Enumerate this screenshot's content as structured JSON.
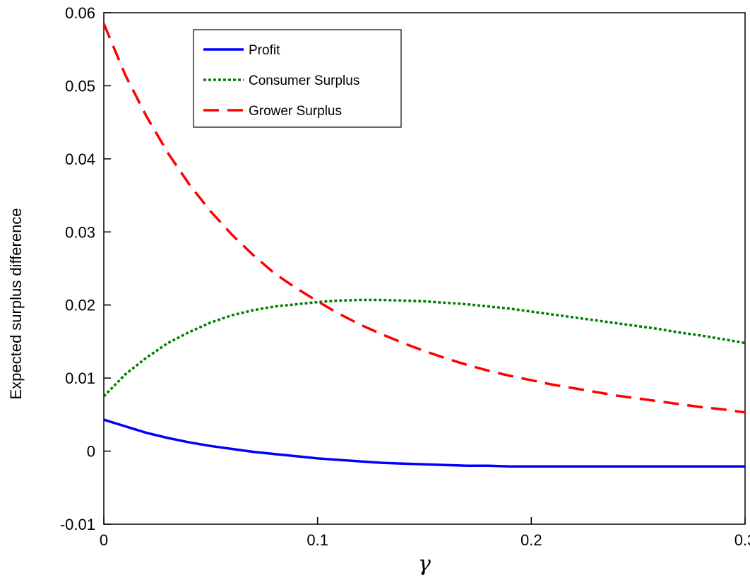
{
  "chart_data": {
    "type": "line",
    "title": "",
    "xlabel": "γ",
    "ylabel": "Expected surplus difference",
    "xlim": [
      0,
      0.3
    ],
    "ylim": [
      -0.01,
      0.06
    ],
    "xticks": [
      0,
      0.1,
      0.2,
      0.3
    ],
    "xtick_labels": [
      "0",
      "0.1",
      "0.2",
      "0.3"
    ],
    "yticks": [
      -0.01,
      0,
      0.01,
      0.02,
      0.03,
      0.04,
      0.05,
      0.06
    ],
    "ytick_labels": [
      "-0.01",
      "0",
      "0.01",
      "0.02",
      "0.03",
      "0.04",
      "0.05",
      "0.06"
    ],
    "grid": false,
    "legend_position": "top-left",
    "x": [
      0,
      0.01,
      0.02,
      0.03,
      0.04,
      0.05,
      0.06,
      0.07,
      0.08,
      0.09,
      0.1,
      0.11,
      0.12,
      0.13,
      0.14,
      0.15,
      0.16,
      0.17,
      0.18,
      0.19,
      0.2,
      0.21,
      0.22,
      0.23,
      0.24,
      0.25,
      0.26,
      0.27,
      0.28,
      0.29,
      0.3
    ],
    "series": [
      {
        "name": "Profit",
        "color": "#0000ff",
        "dash": "solid",
        "values": [
          0.0043,
          0.0034,
          0.0025,
          0.0018,
          0.0012,
          0.0007,
          0.0003,
          -0.0001,
          -0.0004,
          -0.0007,
          -0.001,
          -0.0012,
          -0.0014,
          -0.0016,
          -0.0017,
          -0.0018,
          -0.0019,
          -0.002,
          -0.002,
          -0.0021,
          -0.0021,
          -0.0021,
          -0.0021,
          -0.0021,
          -0.0021,
          -0.0021,
          -0.0021,
          -0.0021,
          -0.0021,
          -0.0021,
          -0.0021
        ]
      },
      {
        "name": "Consumer Surplus",
        "color": "#008000",
        "dash": "dotted",
        "values": [
          0.0075,
          0.0105,
          0.0128,
          0.0148,
          0.0163,
          0.0176,
          0.0186,
          0.0193,
          0.0198,
          0.0201,
          0.0204,
          0.0206,
          0.0207,
          0.0207,
          0.0206,
          0.0205,
          0.0203,
          0.0201,
          0.0198,
          0.0195,
          0.0191,
          0.0187,
          0.0183,
          0.0179,
          0.0175,
          0.0171,
          0.0167,
          0.0162,
          0.0158,
          0.0153,
          0.0148
        ]
      },
      {
        "name": "Grower Surplus",
        "color": "#ff0000",
        "dash": "dashed",
        "values": [
          0.0585,
          0.0515,
          0.0458,
          0.0408,
          0.0365,
          0.0328,
          0.0296,
          0.0268,
          0.0243,
          0.0223,
          0.0205,
          0.0188,
          0.0173,
          0.016,
          0.0148,
          0.0137,
          0.0127,
          0.0118,
          0.011,
          0.0103,
          0.0097,
          0.0091,
          0.0086,
          0.0081,
          0.0076,
          0.0072,
          0.0068,
          0.0064,
          0.006,
          0.0057,
          0.0053
        ]
      }
    ]
  }
}
